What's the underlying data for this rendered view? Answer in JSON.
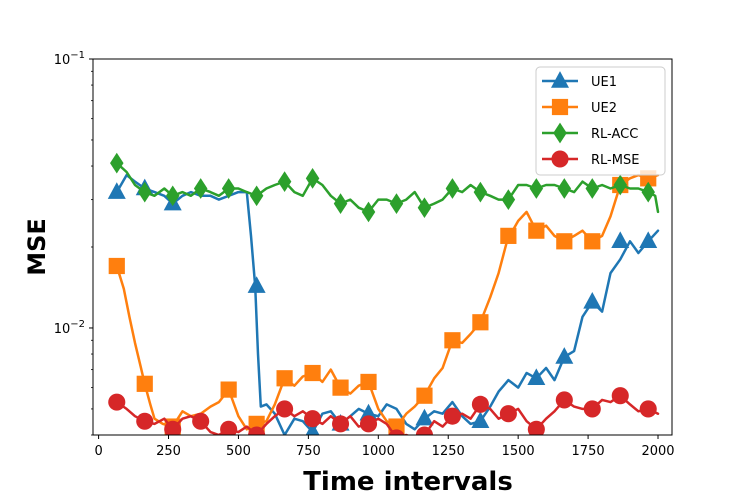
{
  "chart_data": {
    "type": "line",
    "title": "",
    "xlabel": "Time intervals",
    "ylabel": "MSE",
    "xlim": [
      -20,
      2050
    ],
    "ylim": [
      0.004,
      0.1
    ],
    "yscale": "log",
    "grid": false,
    "legend_position": "top-right",
    "x_ticks": [
      {
        "value": 0,
        "label": "0"
      },
      {
        "value": 250,
        "label": "250"
      },
      {
        "value": 500,
        "label": "500"
      },
      {
        "value": 750,
        "label": "750"
      },
      {
        "value": 1000,
        "label": "1000"
      },
      {
        "value": 1250,
        "label": "1250"
      },
      {
        "value": 1500,
        "label": "1500"
      },
      {
        "value": 1750,
        "label": "1750"
      },
      {
        "value": 2000,
        "label": "2000"
      }
    ],
    "y_ticks": [
      {
        "value": 0.1,
        "base": "10",
        "exp": "−1"
      },
      {
        "value": 0.01,
        "base": "10",
        "exp": "−2"
      }
    ],
    "series": [
      {
        "name": "UE1",
        "color": "#1f77b4",
        "marker": "triangle",
        "x": [
          65,
          100,
          130,
          165,
          200,
          235,
          265,
          300,
          330,
          365,
          400,
          430,
          465,
          500,
          530,
          545,
          560,
          570,
          580,
          600,
          630,
          665,
          700,
          730,
          765,
          800,
          830,
          865,
          900,
          930,
          965,
          1000,
          1030,
          1065,
          1100,
          1130,
          1165,
          1200,
          1230,
          1265,
          1300,
          1330,
          1365,
          1400,
          1430,
          1465,
          1500,
          1530,
          1565,
          1600,
          1630,
          1665,
          1700,
          1730,
          1765,
          1800,
          1830,
          1865,
          1900,
          1930,
          1965,
          2000
        ],
        "y": [
          0.032,
          0.037,
          0.035,
          0.033,
          0.032,
          0.031,
          0.029,
          0.031,
          0.032,
          0.031,
          0.031,
          0.03,
          0.031,
          0.032,
          0.032,
          0.022,
          0.0143,
          0.008,
          0.0051,
          0.0052,
          0.0048,
          0.004,
          0.0046,
          0.0045,
          0.0041,
          0.0048,
          0.0049,
          0.0044,
          0.0047,
          0.005,
          0.0048,
          0.0047,
          0.0052,
          0.005,
          0.0044,
          0.0042,
          0.0046,
          0.0049,
          0.0048,
          0.0053,
          0.0047,
          0.0044,
          0.0045,
          0.0051,
          0.0058,
          0.0064,
          0.006,
          0.0068,
          0.0065,
          0.0071,
          0.0064,
          0.0078,
          0.0082,
          0.011,
          0.0125,
          0.0115,
          0.016,
          0.018,
          0.021,
          0.019,
          0.021,
          0.023
        ],
        "markers_x": [
          65,
          165,
          265,
          565,
          765,
          865,
          965,
          1165,
          1365,
          1565,
          1665,
          1765,
          1865,
          1965
        ],
        "markers_y": [
          0.032,
          0.033,
          0.029,
          0.0143,
          0.0041,
          0.0044,
          0.0048,
          0.0046,
          0.0045,
          0.0065,
          0.0078,
          0.0125,
          0.021,
          0.021
        ]
      },
      {
        "name": "UE2",
        "color": "#ff7f0e",
        "marker": "square",
        "x": [
          65,
          90,
          110,
          130,
          150,
          165,
          185,
          200,
          230,
          265,
          300,
          330,
          365,
          400,
          430,
          465,
          500,
          530,
          565,
          600,
          630,
          665,
          700,
          730,
          765,
          800,
          830,
          865,
          900,
          930,
          965,
          1000,
          1030,
          1065,
          1100,
          1130,
          1165,
          1200,
          1230,
          1265,
          1300,
          1330,
          1365,
          1400,
          1430,
          1465,
          1480,
          1500,
          1530,
          1565,
          1600,
          1630,
          1665,
          1700,
          1730,
          1765,
          1800,
          1830,
          1865,
          1900,
          1930,
          1965,
          2000
        ],
        "y": [
          0.017,
          0.014,
          0.011,
          0.0088,
          0.0072,
          0.0062,
          0.0052,
          0.0046,
          0.0044,
          0.0043,
          0.0049,
          0.0047,
          0.0048,
          0.0051,
          0.0053,
          0.0059,
          0.0047,
          0.0042,
          0.0044,
          0.0045,
          0.0052,
          0.0065,
          0.0061,
          0.0066,
          0.0068,
          0.0063,
          0.007,
          0.006,
          0.0057,
          0.0061,
          0.0063,
          0.005,
          0.0045,
          0.0043,
          0.0048,
          0.0051,
          0.0056,
          0.0065,
          0.0071,
          0.009,
          0.0088,
          0.0095,
          0.0105,
          0.013,
          0.016,
          0.022,
          0.023,
          0.025,
          0.027,
          0.023,
          0.024,
          0.022,
          0.021,
          0.022,
          0.023,
          0.021,
          0.022,
          0.026,
          0.034,
          0.036,
          0.037,
          0.036,
          0.037
        ],
        "markers_x": [
          65,
          165,
          265,
          465,
          565,
          665,
          765,
          865,
          965,
          1065,
          1165,
          1265,
          1365,
          1465,
          1565,
          1665,
          1765,
          1865,
          1965
        ],
        "markers_y": [
          0.017,
          0.0062,
          0.0043,
          0.0059,
          0.0044,
          0.0065,
          0.0068,
          0.006,
          0.0063,
          0.0043,
          0.0056,
          0.009,
          0.0105,
          0.022,
          0.023,
          0.021,
          0.021,
          0.034,
          0.036
        ]
      },
      {
        "name": "RL-ACC",
        "color": "#2ca02c",
        "marker": "diamond",
        "x": [
          65,
          100,
          130,
          165,
          200,
          235,
          265,
          300,
          330,
          365,
          400,
          430,
          465,
          500,
          530,
          565,
          600,
          630,
          665,
          700,
          730,
          765,
          800,
          830,
          865,
          900,
          930,
          965,
          1000,
          1030,
          1065,
          1100,
          1130,
          1165,
          1200,
          1230,
          1265,
          1300,
          1330,
          1365,
          1400,
          1430,
          1465,
          1500,
          1530,
          1565,
          1600,
          1630,
          1665,
          1700,
          1730,
          1765,
          1800,
          1830,
          1865,
          1900,
          1930,
          1965,
          1990,
          2000
        ],
        "y": [
          0.041,
          0.038,
          0.034,
          0.032,
          0.031,
          0.033,
          0.031,
          0.032,
          0.031,
          0.033,
          0.032,
          0.031,
          0.033,
          0.033,
          0.032,
          0.031,
          0.033,
          0.034,
          0.035,
          0.032,
          0.031,
          0.036,
          0.034,
          0.031,
          0.029,
          0.03,
          0.028,
          0.027,
          0.03,
          0.03,
          0.029,
          0.03,
          0.032,
          0.028,
          0.029,
          0.03,
          0.033,
          0.032,
          0.034,
          0.032,
          0.031,
          0.03,
          0.03,
          0.034,
          0.034,
          0.033,
          0.034,
          0.034,
          0.033,
          0.032,
          0.035,
          0.033,
          0.034,
          0.033,
          0.034,
          0.033,
          0.033,
          0.032,
          0.031,
          0.027
        ],
        "markers_x": [
          65,
          165,
          265,
          365,
          465,
          565,
          665,
          765,
          865,
          965,
          1065,
          1165,
          1265,
          1365,
          1465,
          1565,
          1665,
          1765,
          1865,
          1965
        ],
        "markers_y": [
          0.041,
          0.032,
          0.031,
          0.033,
          0.033,
          0.031,
          0.035,
          0.036,
          0.029,
          0.027,
          0.029,
          0.028,
          0.033,
          0.032,
          0.03,
          0.033,
          0.033,
          0.033,
          0.034,
          0.032
        ]
      },
      {
        "name": "RL-MSE",
        "color": "#d62728",
        "marker": "circle",
        "x": [
          65,
          100,
          130,
          165,
          200,
          235,
          265,
          300,
          330,
          365,
          400,
          430,
          465,
          500,
          530,
          565,
          600,
          630,
          665,
          700,
          730,
          765,
          800,
          830,
          865,
          900,
          930,
          965,
          1000,
          1030,
          1065,
          1100,
          1130,
          1165,
          1200,
          1230,
          1265,
          1300,
          1330,
          1365,
          1400,
          1430,
          1465,
          1500,
          1530,
          1565,
          1600,
          1630,
          1665,
          1700,
          1730,
          1765,
          1800,
          1830,
          1865,
          1900,
          1930,
          1965,
          2000
        ],
        "y": [
          0.0053,
          0.005,
          0.0047,
          0.0045,
          0.0044,
          0.0046,
          0.0042,
          0.0046,
          0.0047,
          0.0045,
          0.0041,
          0.004,
          0.0042,
          0.0041,
          0.0043,
          0.004,
          0.0044,
          0.0047,
          0.005,
          0.0047,
          0.0049,
          0.0046,
          0.0044,
          0.0047,
          0.0044,
          0.0047,
          0.0043,
          0.0044,
          0.0046,
          0.0044,
          0.0039,
          0.004,
          0.0039,
          0.004,
          0.0045,
          0.0043,
          0.0047,
          0.0048,
          0.0046,
          0.0052,
          0.005,
          0.0046,
          0.0048,
          0.005,
          0.0045,
          0.0042,
          0.0046,
          0.0049,
          0.0054,
          0.0051,
          0.005,
          0.005,
          0.0054,
          0.0053,
          0.0056,
          0.0052,
          0.0049,
          0.005,
          0.0048
        ],
        "markers_x": [
          65,
          165,
          265,
          365,
          465,
          565,
          665,
          765,
          865,
          965,
          1065,
          1165,
          1265,
          1365,
          1465,
          1565,
          1665,
          1765,
          1865,
          1965
        ],
        "markers_y": [
          0.0053,
          0.0045,
          0.0042,
          0.0045,
          0.0042,
          0.004,
          0.005,
          0.0046,
          0.0044,
          0.0044,
          0.0039,
          0.004,
          0.0047,
          0.0052,
          0.0048,
          0.0042,
          0.0054,
          0.005,
          0.0056,
          0.005
        ]
      }
    ]
  }
}
